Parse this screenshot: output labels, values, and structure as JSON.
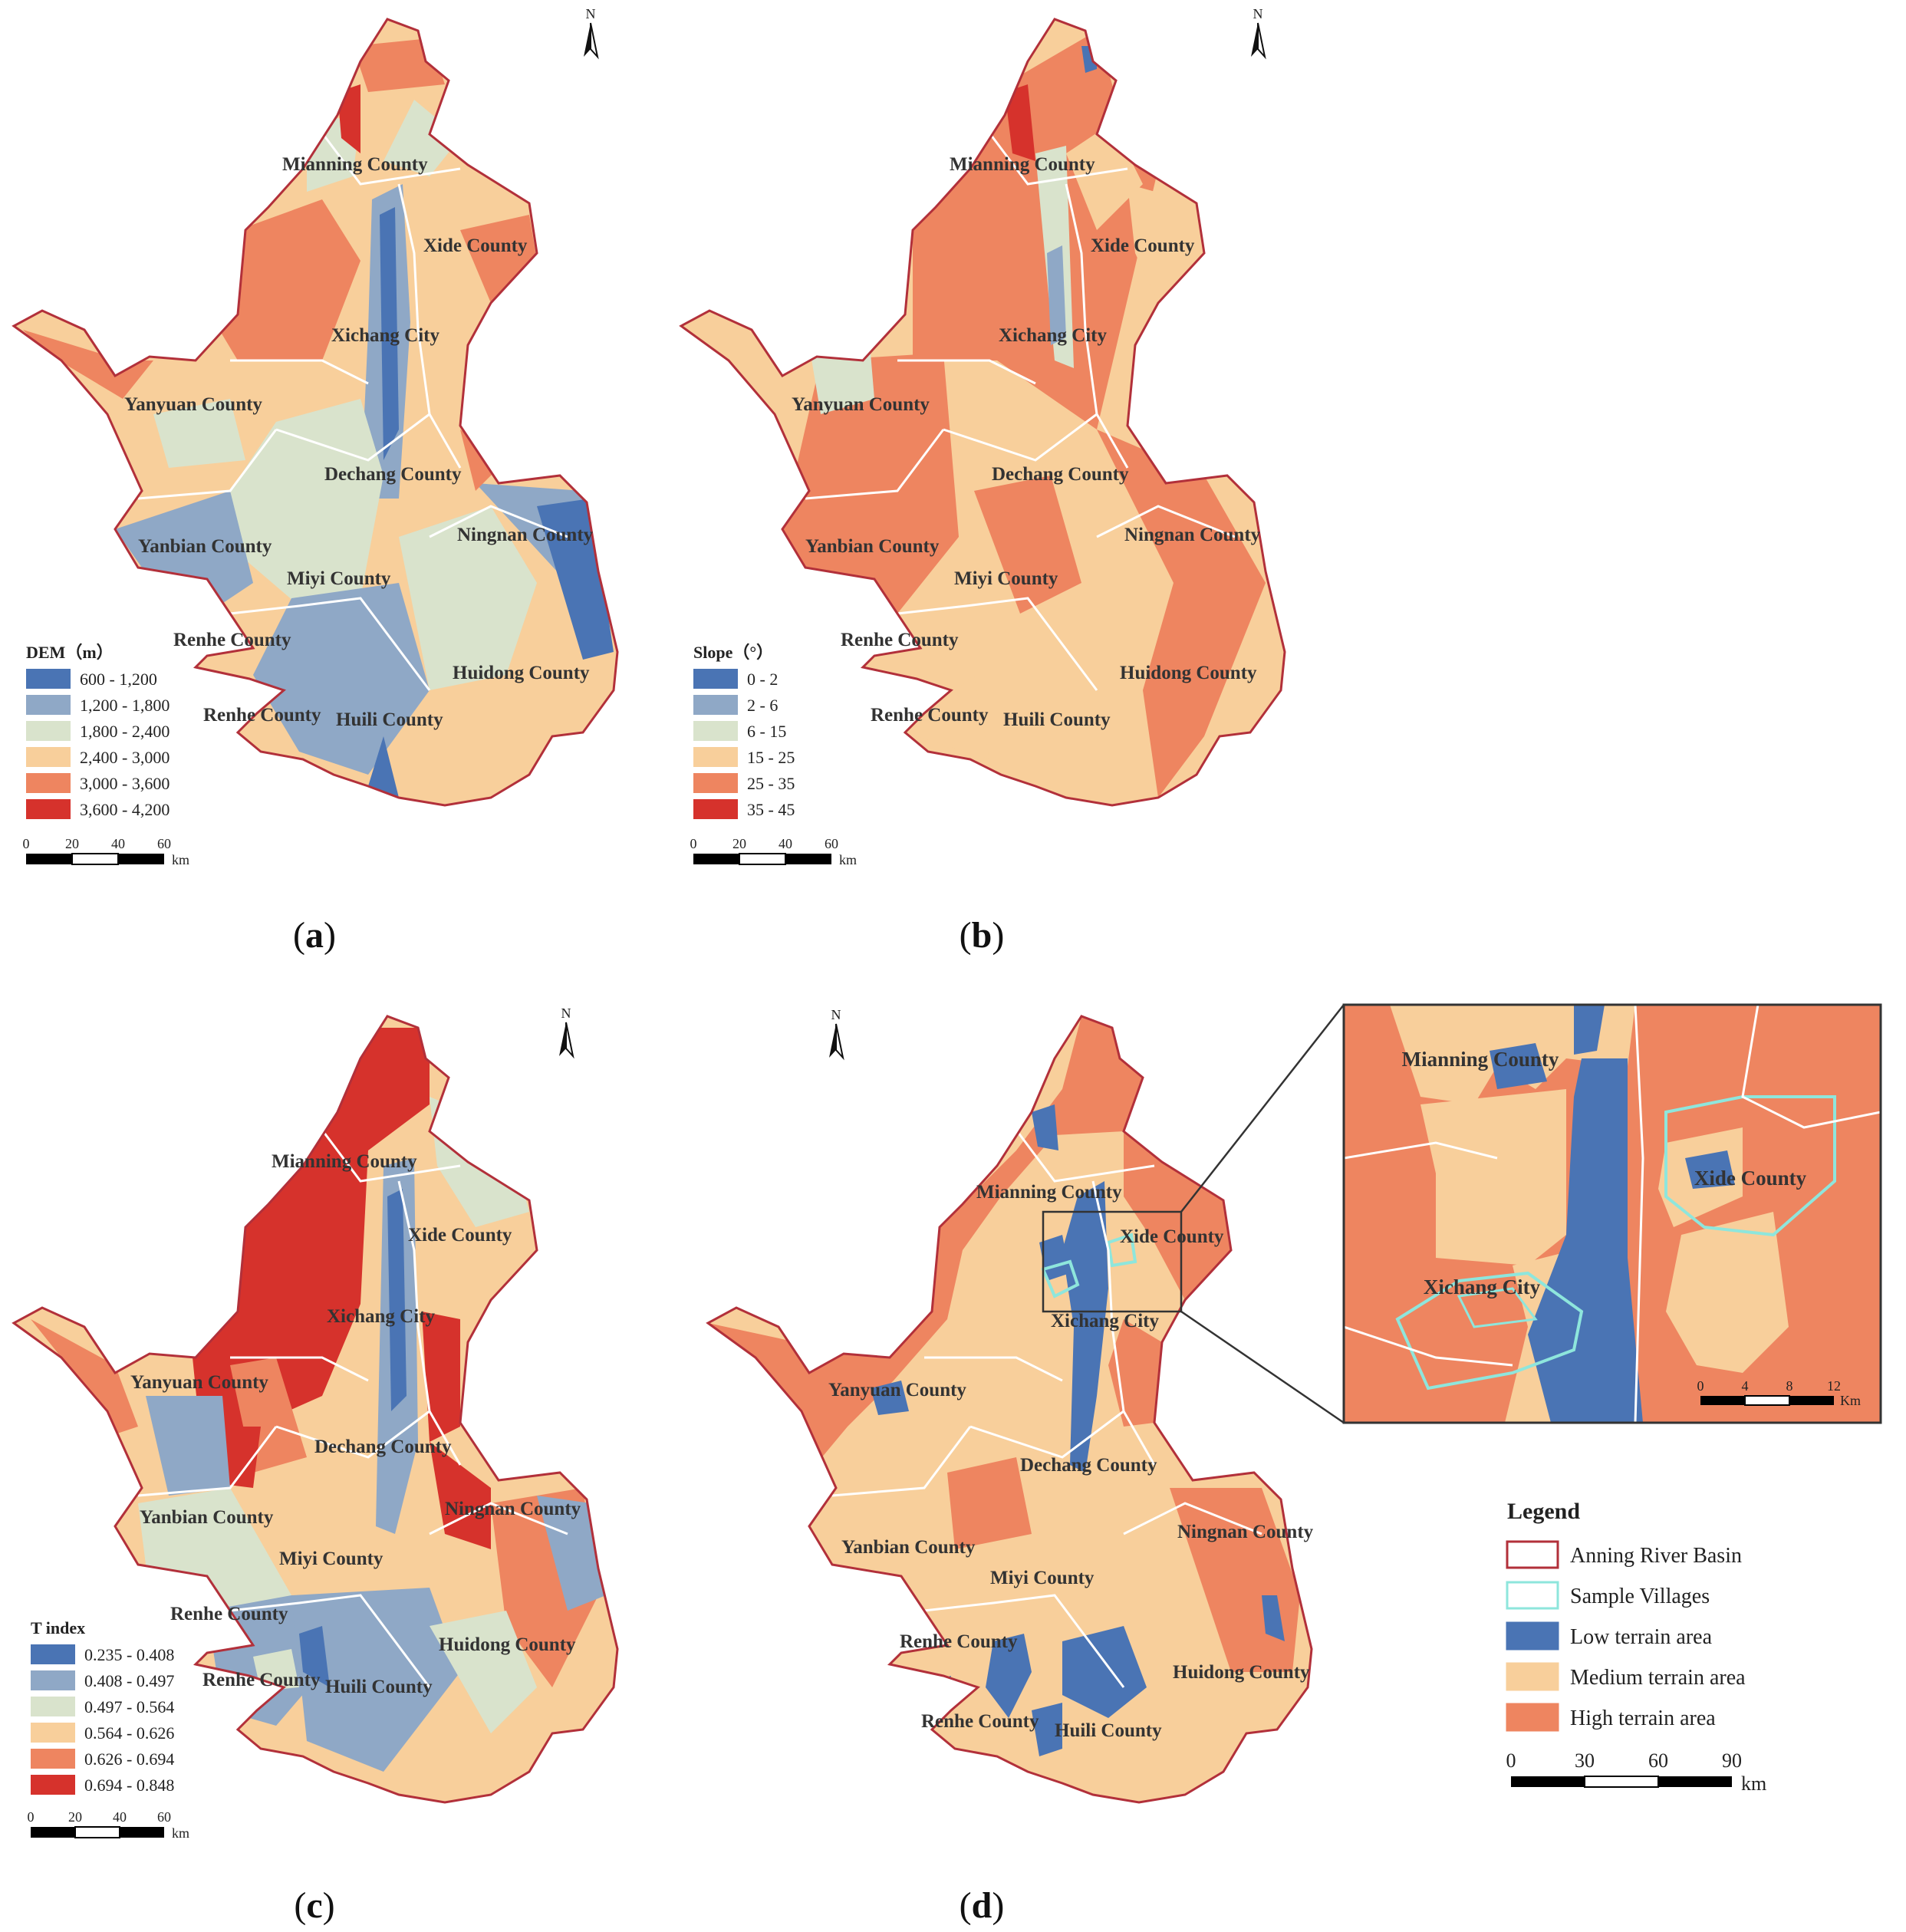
{
  "panels": [
    {
      "id": "a",
      "caption_letter": "a",
      "north": "N",
      "legend": {
        "title": "DEM（m）",
        "classes": [
          {
            "label": "600 - 1,200",
            "color": "#4a74b4"
          },
          {
            "label": "1,200 - 1,800",
            "color": "#8fa8c6"
          },
          {
            "label": "1,800 - 2,400",
            "color": "#d9e3cc"
          },
          {
            "label": "2,400 - 3,000",
            "color": "#f8cf9b"
          },
          {
            "label": "3,000 - 3,600",
            "color": "#ee8560"
          },
          {
            "label": "3,600 - 4,200",
            "color": "#d6322c"
          }
        ]
      },
      "scale": {
        "ticks": [
          "0",
          "20",
          "40",
          "60"
        ],
        "unit": "km"
      },
      "labels": [
        "Mianning County",
        "Xide County",
        "Xichang City",
        "Yanyuan County",
        "Dechang County",
        "Ningnan County",
        "Yanbian County",
        "Miyi County",
        "Renhe County",
        "Huidong County",
        "Renhe County",
        "Huili County"
      ]
    },
    {
      "id": "b",
      "caption_letter": "b",
      "north": "N",
      "legend": {
        "title": "Slope（°）",
        "classes": [
          {
            "label": "0 - 2",
            "color": "#4a74b4"
          },
          {
            "label": "2 - 6",
            "color": "#8fa8c6"
          },
          {
            "label": "6 - 15",
            "color": "#d9e3cc"
          },
          {
            "label": "15 - 25",
            "color": "#f8cf9b"
          },
          {
            "label": "25 - 35",
            "color": "#ee8560"
          },
          {
            "label": "35 - 45",
            "color": "#d6322c"
          }
        ]
      },
      "scale": {
        "ticks": [
          "0",
          "20",
          "40",
          "60"
        ],
        "unit": "km"
      },
      "labels": [
        "Mianning County",
        "Xide County",
        "Xichang City",
        "Yanyuan County",
        "Dechang County",
        "Ningnan County",
        "Yanbian County",
        "Miyi County",
        "Renhe County",
        "Huidong County",
        "Renhe County",
        "Huili County"
      ]
    },
    {
      "id": "c",
      "caption_letter": "c",
      "north": "N",
      "legend": {
        "title": "T index",
        "classes": [
          {
            "label": "0.235 - 0.408",
            "color": "#4a74b4"
          },
          {
            "label": "0.408 - 0.497",
            "color": "#8fa8c6"
          },
          {
            "label": "0.497 - 0.564",
            "color": "#d9e3cc"
          },
          {
            "label": "0.564 - 0.626",
            "color": "#f8cf9b"
          },
          {
            "label": "0.626 - 0.694",
            "color": "#ee8560"
          },
          {
            "label": "0.694 - 0.848",
            "color": "#d6322c"
          }
        ]
      },
      "scale": {
        "ticks": [
          "0",
          "20",
          "40",
          "60"
        ],
        "unit": "km"
      },
      "labels": [
        "Mianning County",
        "Xide County",
        "Xichang City",
        "Yanyuan County",
        "Dechang County",
        "Ningnan County",
        "Yanbian County",
        "Miyi County",
        "Renhe County",
        "Huidong County",
        "Renhe County",
        "Huili County"
      ]
    },
    {
      "id": "d",
      "caption_letter": "d",
      "north": "N",
      "labels": [
        "Mianning County",
        "Xide County",
        "Xichang City",
        "Yanyuan County",
        "Dechang County",
        "Ningnan County",
        "Yanbian County",
        "Miyi County",
        "Renhe County",
        "Huidong County",
        "Renhe County",
        "Huili County"
      ],
      "inset": {
        "labels": [
          "Mianning County",
          "Xide County",
          "Xichang City"
        ],
        "scale": {
          "ticks": [
            "0",
            "4",
            "8",
            "12"
          ],
          "unit": "Km"
        }
      },
      "legend": {
        "title": "Legend",
        "items": [
          {
            "label": "Anning River Basin",
            "fill": "#ffffff",
            "stroke": "#b2303a"
          },
          {
            "label": "Sample Villages",
            "fill": "#ffffff",
            "stroke": "#8ee6dc"
          },
          {
            "label": "Low terrain area",
            "fill": "#4a74b4",
            "stroke": "#4a74b4"
          },
          {
            "label": "Medium terrain area",
            "fill": "#f8cf9b",
            "stroke": "#f8cf9b"
          },
          {
            "label": "High terrain area",
            "fill": "#ee8560",
            "stroke": "#ee8560"
          }
        ]
      },
      "scale": {
        "ticks": [
          "0",
          "30",
          "60",
          "90"
        ],
        "unit": "km"
      }
    }
  ],
  "colors": {
    "basin_border": "#b2303a",
    "county_line": "#ffffff",
    "sample_villages": "#8ee6dc"
  }
}
